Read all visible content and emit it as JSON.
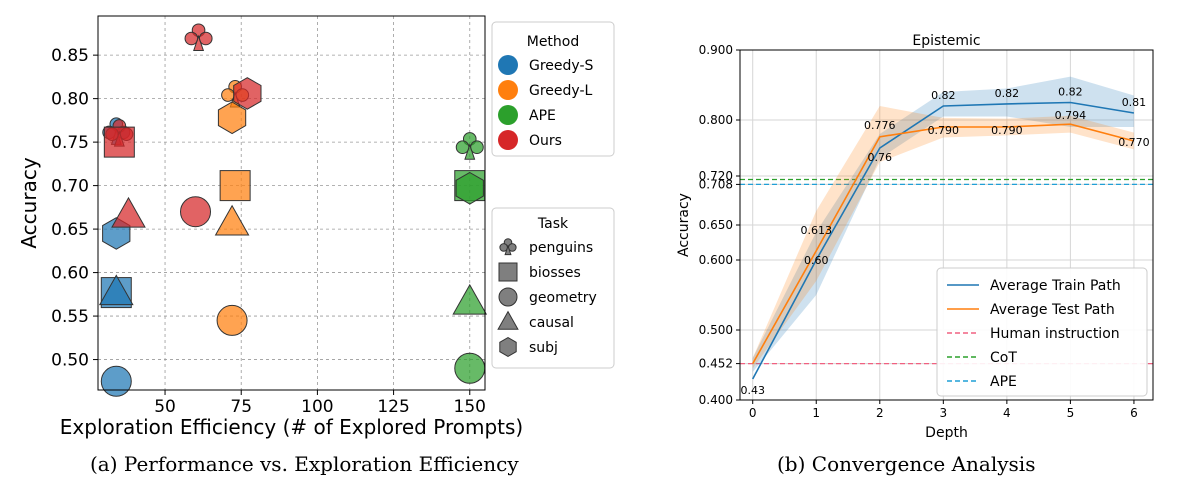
{
  "panel_a": {
    "caption": "(a) Performance vs. Exploration Efficiency",
    "chart_data": {
      "type": "scatter",
      "xlabel": "Exploration Efficiency (# of Explored Prompts)",
      "ylabel": "Accuracy",
      "xlim": [
        28,
        155
      ],
      "ylim": [
        0.465,
        0.895
      ],
      "xticks": [
        50,
        75,
        100,
        125,
        150
      ],
      "yticks": [
        0.5,
        0.55,
        0.6,
        0.65,
        0.7,
        0.75,
        0.8,
        0.85
      ],
      "grid": true,
      "legend_method": {
        "title": "Method",
        "entries": [
          "Greedy-S",
          "Greedy-L",
          "APE",
          "Ours"
        ],
        "colors": [
          "#1f77b4",
          "#ff7f0e",
          "#2ca02c",
          "#d62728"
        ],
        "placement": "right-top"
      },
      "legend_task": {
        "title": "Task",
        "entries": [
          "penguins",
          "biosses",
          "geometry",
          "causal",
          "subj"
        ],
        "markers": [
          "club",
          "square",
          "circle",
          "triangle",
          "hexagon"
        ],
        "placement": "right-bottom"
      },
      "points": [
        {
          "method": "Greedy-S",
          "task": "penguins",
          "x": 34,
          "y": 0.762
        },
        {
          "method": "Greedy-S",
          "task": "subj",
          "x": 34,
          "y": 0.645
        },
        {
          "method": "Greedy-S",
          "task": "biosses",
          "x": 34,
          "y": 0.577
        },
        {
          "method": "Greedy-S",
          "task": "causal",
          "x": 34,
          "y": 0.577
        },
        {
          "method": "Greedy-S",
          "task": "geometry",
          "x": 34,
          "y": 0.475
        },
        {
          "method": "Greedy-L",
          "task": "penguins",
          "x": 73,
          "y": 0.805
        },
        {
          "method": "Greedy-L",
          "task": "subj",
          "x": 72,
          "y": 0.778
        },
        {
          "method": "Greedy-L",
          "task": "biosses",
          "x": 73,
          "y": 0.7
        },
        {
          "method": "Greedy-L",
          "task": "causal",
          "x": 72,
          "y": 0.657
        },
        {
          "method": "Greedy-L",
          "task": "geometry",
          "x": 72,
          "y": 0.545
        },
        {
          "method": "APE",
          "task": "penguins",
          "x": 150,
          "y": 0.745
        },
        {
          "method": "APE",
          "task": "biosses",
          "x": 150,
          "y": 0.7
        },
        {
          "method": "APE",
          "task": "subj",
          "x": 150,
          "y": 0.697
        },
        {
          "method": "APE",
          "task": "causal",
          "x": 150,
          "y": 0.566
        },
        {
          "method": "APE",
          "task": "geometry",
          "x": 150,
          "y": 0.49
        },
        {
          "method": "Ours",
          "task": "penguins",
          "x": 61,
          "y": 0.87
        },
        {
          "method": "Ours",
          "task": "subj",
          "x": 77,
          "y": 0.806
        },
        {
          "method": "Ours",
          "task": "penguins",
          "x": 35,
          "y": 0.76
        },
        {
          "method": "Ours",
          "task": "biosses",
          "x": 35,
          "y": 0.75
        },
        {
          "method": "Ours",
          "task": "causal",
          "x": 38,
          "y": 0.666
        },
        {
          "method": "Ours",
          "task": "geometry",
          "x": 60,
          "y": 0.67
        }
      ]
    }
  },
  "panel_b": {
    "caption": "(b) Convergence Analysis",
    "chart_data": {
      "type": "line",
      "title": "Epistemic",
      "xlabel": "Depth",
      "ylabel": "Accuracy",
      "xlim": [
        -0.2,
        6.3
      ],
      "ylim": [
        0.4,
        0.9
      ],
      "xticks": [
        0,
        1,
        2,
        3,
        4,
        5,
        6
      ],
      "ytick_labels": [
        "0.400",
        "0.452",
        "0.500",
        "0.600",
        "0.650",
        "0.708",
        "0.720",
        "0.800",
        "0.900"
      ],
      "grid": true,
      "legend_placement": "lower-right",
      "series": [
        {
          "name": "Average Train Path",
          "color": "#1f77b4",
          "x": [
            0,
            1,
            2,
            3,
            4,
            5,
            6
          ],
          "y": [
            0.43,
            0.6,
            0.76,
            0.82,
            0.823,
            0.825,
            0.81
          ],
          "band_low": [
            0.44,
            0.55,
            0.745,
            0.805,
            0.805,
            0.79,
            0.79
          ],
          "band_high": [
            0.46,
            0.64,
            0.78,
            0.84,
            0.845,
            0.862,
            0.835
          ],
          "labels": [
            "0.43",
            "0.60",
            "0.76",
            "0.82",
            "0.82",
            "0.82",
            "0.81"
          ]
        },
        {
          "name": "Average Test Path",
          "color": "#ff7f0e",
          "x": [
            0,
            1,
            2,
            3,
            4,
            5,
            6
          ],
          "y": [
            0.452,
            0.613,
            0.776,
            0.79,
            0.79,
            0.794,
            0.77
          ],
          "band_low": [
            0.445,
            0.57,
            0.74,
            0.775,
            0.778,
            0.782,
            0.758
          ],
          "band_high": [
            0.46,
            0.67,
            0.82,
            0.803,
            0.802,
            0.806,
            0.782
          ],
          "labels": [
            "",
            "0.613",
            "0.776",
            "0.790",
            "0.790",
            "0.794",
            "0.770"
          ]
        }
      ],
      "reference_lines": [
        {
          "name": "Human instruction",
          "color": "#f06080",
          "y": 0.452
        },
        {
          "name": "CoT",
          "color": "#2ca02c",
          "y": 0.715
        },
        {
          "name": "APE",
          "color": "#1f9fd6",
          "y": 0.708
        }
      ]
    }
  }
}
